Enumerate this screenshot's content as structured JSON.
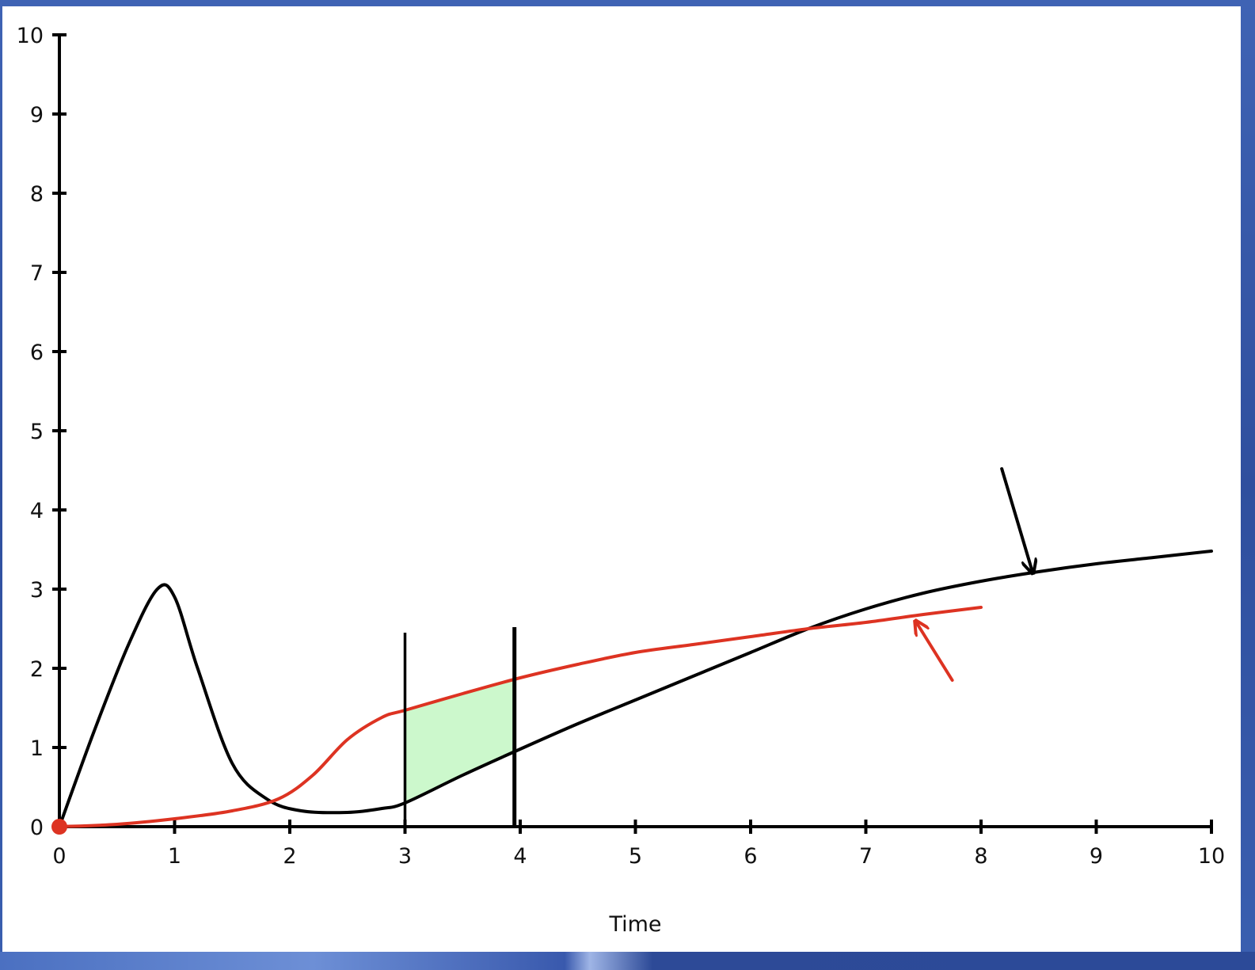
{
  "chart_data": {
    "type": "line",
    "title": "",
    "xlabel": "Time",
    "ylabel": "",
    "xlim": [
      0,
      10
    ],
    "ylim": [
      0,
      10
    ],
    "x_ticks": [
      "0",
      "1",
      "2",
      "3",
      "4",
      "5",
      "6",
      "7",
      "8",
      "9",
      "10"
    ],
    "y_ticks": [
      "0",
      "1",
      "2",
      "3",
      "4",
      "5",
      "6",
      "7",
      "8",
      "9",
      "10"
    ],
    "grid": false,
    "legend": "none",
    "series": [
      {
        "color": "#000000",
        "x": [
          0,
          0.3,
          0.6,
          0.85,
          1.0,
          1.2,
          1.5,
          1.8,
          2.1,
          2.5,
          2.8,
          3.0,
          3.5,
          4.0,
          4.5,
          5.0,
          5.5,
          6.0,
          6.5,
          7.0,
          7.5,
          8.0,
          8.5,
          9.0,
          9.5,
          10.0
        ],
        "y": [
          0,
          1.2,
          2.3,
          3.0,
          2.9,
          2.0,
          0.8,
          0.35,
          0.2,
          0.18,
          0.23,
          0.3,
          0.65,
          0.98,
          1.3,
          1.6,
          1.9,
          2.2,
          2.5,
          2.75,
          2.95,
          3.1,
          3.22,
          3.32,
          3.4,
          3.48
        ]
      },
      {
        "color": "#dd3322",
        "x": [
          0,
          0.5,
          1.0,
          1.5,
          1.9,
          2.2,
          2.5,
          2.8,
          3.0,
          3.5,
          4.0,
          4.5,
          5.0,
          5.5,
          6.0,
          6.5,
          7.0,
          7.5,
          8.0
        ],
        "y": [
          0,
          0.03,
          0.1,
          0.2,
          0.35,
          0.65,
          1.1,
          1.38,
          1.47,
          1.68,
          1.88,
          2.05,
          2.2,
          2.3,
          2.4,
          2.5,
          2.58,
          2.68,
          2.77
        ]
      }
    ],
    "shaded_region": {
      "x_from": 3,
      "x_to": 3.95,
      "color": "#ccf8cc"
    },
    "vertical_lines": [
      {
        "x": 3.0,
        "y_top": 2.45
      },
      {
        "x": 3.95,
        "y_top": 2.52
      }
    ],
    "start_marker": {
      "x": 0,
      "y": 0,
      "color": "#dd3322"
    },
    "annotations": [
      {
        "kind": "arrow",
        "color": "#000000",
        "from": [
          8.18,
          4.52
        ],
        "to": [
          8.45,
          3.2
        ]
      },
      {
        "kind": "arrow",
        "color": "#dd3322",
        "from": [
          7.75,
          1.85
        ],
        "to": [
          7.43,
          2.6
        ]
      }
    ]
  }
}
